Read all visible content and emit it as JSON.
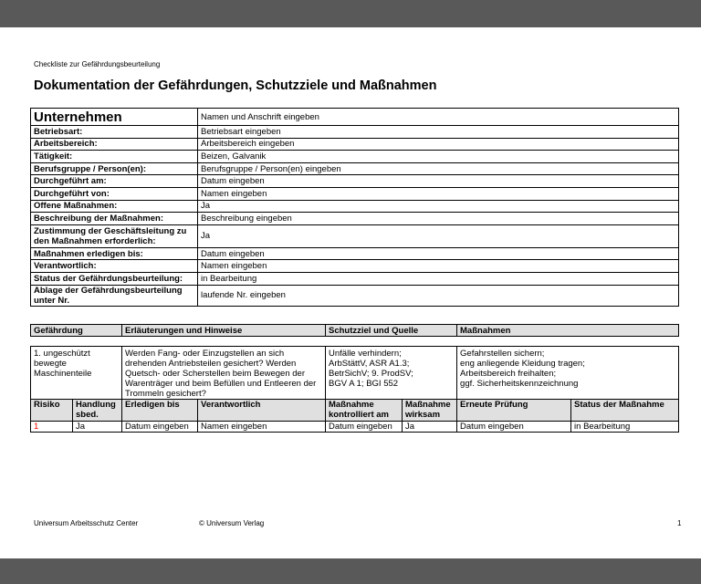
{
  "doc": {
    "subtitle": "Checkliste zur Gefährdungsbeurteilung",
    "title": "Dokumentation der Gefährdungen, Schutzziele und Maßnahmen"
  },
  "info": {
    "company_label": "Unternehmen",
    "company_value": "Namen und Anschrift eingeben",
    "rows": [
      {
        "label": "Betriebsart:",
        "value": "Betriebsart eingeben"
      },
      {
        "label": "Arbeitsbereich:",
        "value": "Arbeitsbereich eingeben"
      },
      {
        "label": "Tätigkeit:",
        "value": "Beizen, Galvanik"
      },
      {
        "label": "Berufsgruppe / Person(en):",
        "value": "Berufsgruppe / Person(en) eingeben"
      },
      {
        "label": "Durchgeführt am:",
        "value": "Datum eingeben"
      },
      {
        "label": "Durchgeführt von:",
        "value": "Namen eingeben"
      },
      {
        "label": "Offene Maßnahmen:",
        "value": "Ja"
      },
      {
        "label": "Beschreibung der Maßnahmen:",
        "value": "Beschreibung eingeben"
      },
      {
        "label": "Zustimmung der Geschäftsleitung zu den Maßnahmen erforderlich:",
        "value": "Ja"
      },
      {
        "label": "Maßnahmen erledigen bis:",
        "value": "Datum eingeben"
      },
      {
        "label": "Verantwortlich:",
        "value": "Namen eingeben"
      },
      {
        "label": "Status der Gefährdungsbeurteilung:",
        "value": "in Bearbeitung"
      },
      {
        "label": "Ablage der Gefährdungsbeurteilung unter Nr.",
        "value": "laufende Nr. eingeben"
      }
    ]
  },
  "hazard_header": [
    "Gefährdung",
    "Erläuterungen und Hinweise",
    "Schutzziel und Quelle",
    "Maßnahmen"
  ],
  "hazard": {
    "name": "1. ungeschützt bewegte Maschinenteile",
    "notes": "Werden Fang- oder Einzugstellen an sich drehenden Antriebsteilen gesichert? Werden Quetsch- oder Scherstellen beim Bewegen der Warenträger und beim Befüllen und Entleeren der Trommeln gesichert?",
    "goal": [
      "Unfälle verhindern;",
      "ArbStättV, ASR A1.3;",
      "BetrSichV; 9. ProdSV;",
      "BGV A 1; BGI 552"
    ],
    "measures": [
      "Gefahrstellen sichern;",
      "eng anliegende Kleidung tragen;",
      "Arbeitsbereich freihalten;",
      "ggf. Sicherheitskennzeichnung"
    ]
  },
  "track_header": [
    "Risiko",
    "Handlung sbed.",
    "Erledigen bis",
    "Verantwortlich",
    "Maßnahme kontrolliert am",
    "Maßnahme wirksam",
    "Erneute Prüfung",
    "Status der Maßnahme"
  ],
  "track_row": [
    "1",
    "Ja",
    "Datum eingeben",
    "Namen eingeben",
    "Datum eingeben",
    "Ja",
    "Datum eingeben",
    "in Bearbeitung"
  ],
  "colors": {
    "risk": "#ff0000",
    "header_bg": "#e0e0e0",
    "frame": "#595959"
  },
  "footer": {
    "left": "Universum Arbeitsschutz Center",
    "center": "© Universum Verlag",
    "page": "1"
  }
}
